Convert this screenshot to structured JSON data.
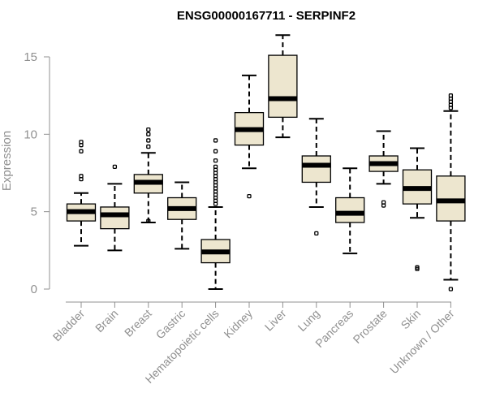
{
  "chart_data": {
    "type": "boxplot",
    "title": "ENSG00000167711 - SERPINF2",
    "xlabel": "",
    "ylabel": "Expression",
    "ylim": [
      0,
      15
    ],
    "yticks": [
      0,
      5,
      10,
      15
    ],
    "box_fill": "#ede6cf",
    "categories": [
      "Bladder",
      "Brain",
      "Breast",
      "Gastric",
      "Hematopoietic cells",
      "Kidney",
      "Liver",
      "Lung",
      "Pancreas",
      "Prostate",
      "Skin",
      "Unknown / Other"
    ],
    "boxes": [
      {
        "name": "Bladder",
        "whisker_low": 2.8,
        "q1": 4.4,
        "median": 5.0,
        "q3": 5.5,
        "whisker_high": 6.2,
        "outliers": [
          7.1,
          7.3,
          8.9,
          9.3,
          9.5
        ]
      },
      {
        "name": "Brain",
        "whisker_low": 2.5,
        "q1": 3.9,
        "median": 4.8,
        "q3": 5.3,
        "whisker_high": 6.8,
        "outliers": [
          7.9
        ]
      },
      {
        "name": "Breast",
        "whisker_low": 4.3,
        "q1": 6.2,
        "median": 6.9,
        "q3": 7.4,
        "whisker_high": 8.8,
        "outliers": [
          4.4,
          9.2,
          9.6,
          10.0,
          10.3
        ]
      },
      {
        "name": "Gastric",
        "whisker_low": 2.6,
        "q1": 4.5,
        "median": 5.2,
        "q3": 5.9,
        "whisker_high": 6.9,
        "outliers": []
      },
      {
        "name": "Hematopoietic cells",
        "whisker_low": 0.0,
        "q1": 1.7,
        "median": 2.4,
        "q3": 3.2,
        "whisker_high": 5.3,
        "outliers": [
          5.5,
          5.7,
          5.9,
          6.1,
          6.3,
          6.5,
          6.7,
          6.9,
          7.1,
          7.3,
          7.5,
          7.7,
          7.9,
          8.3,
          8.9,
          9.6
        ]
      },
      {
        "name": "Kidney",
        "whisker_low": 7.8,
        "q1": 9.3,
        "median": 10.3,
        "q3": 11.4,
        "whisker_high": 13.8,
        "outliers": [
          6.0
        ]
      },
      {
        "name": "Liver",
        "whisker_low": 9.8,
        "q1": 11.1,
        "median": 12.3,
        "q3": 15.1,
        "whisker_high": 16.4,
        "outliers": []
      },
      {
        "name": "Lung",
        "whisker_low": 5.3,
        "q1": 6.9,
        "median": 8.0,
        "q3": 8.6,
        "whisker_high": 11.0,
        "outliers": [
          3.6
        ]
      },
      {
        "name": "Pancreas",
        "whisker_low": 2.3,
        "q1": 4.3,
        "median": 4.9,
        "q3": 5.9,
        "whisker_high": 7.8,
        "outliers": []
      },
      {
        "name": "Prostate",
        "whisker_low": 6.8,
        "q1": 7.6,
        "median": 8.1,
        "q3": 8.6,
        "whisker_high": 10.2,
        "outliers": [
          5.4,
          5.6
        ]
      },
      {
        "name": "Skin",
        "whisker_low": 4.6,
        "q1": 5.5,
        "median": 6.5,
        "q3": 7.7,
        "whisker_high": 9.1,
        "outliers": [
          1.3,
          1.4
        ]
      },
      {
        "name": "Unknown / Other",
        "whisker_low": 0.6,
        "q1": 4.4,
        "median": 5.7,
        "q3": 7.3,
        "whisker_high": 11.5,
        "outliers": [
          0.0,
          11.7,
          11.9,
          12.1,
          12.3,
          12.5
        ]
      }
    ]
  }
}
